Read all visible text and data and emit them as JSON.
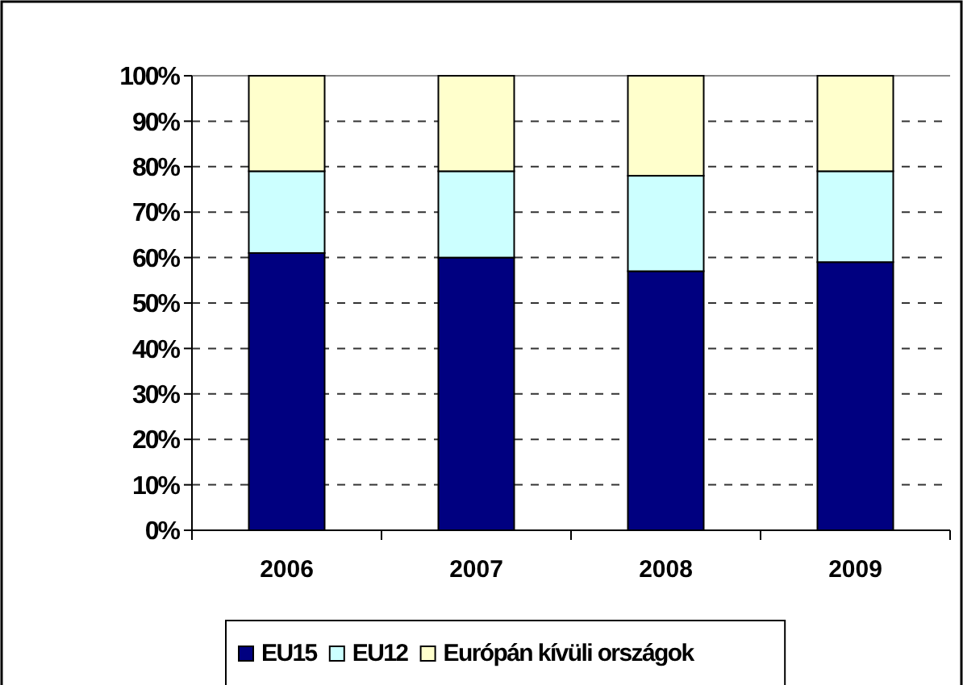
{
  "chart_data": {
    "type": "bar",
    "stacked": true,
    "categories": [
      "2006",
      "2007",
      "2008",
      "2009"
    ],
    "series": [
      {
        "name": "EU15",
        "color": "#000080",
        "values": [
          61,
          60,
          57,
          59
        ]
      },
      {
        "name": "EU12",
        "color": "#ccffff",
        "values": [
          18,
          19,
          21,
          20
        ]
      },
      {
        "name": "Európán kívüli országok",
        "color": "#ffffcc",
        "values": [
          21,
          21,
          22,
          21
        ]
      }
    ],
    "ylim": [
      0,
      100
    ],
    "yticks": [
      {
        "value": 0,
        "label": "0%"
      },
      {
        "value": 10,
        "label": "10%"
      },
      {
        "value": 20,
        "label": "20%"
      },
      {
        "value": 30,
        "label": "30%"
      },
      {
        "value": 40,
        "label": "40%"
      },
      {
        "value": 50,
        "label": "50%"
      },
      {
        "value": 60,
        "label": "60%"
      },
      {
        "value": 70,
        "label": "70%"
      },
      {
        "value": 80,
        "label": "80%"
      },
      {
        "value": 90,
        "label": "90%"
      },
      {
        "value": 100,
        "label": "100%"
      }
    ],
    "grid": "y",
    "legend": "bottom"
  }
}
